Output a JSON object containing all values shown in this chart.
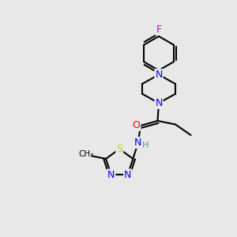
{
  "background_color": "#e8e8e8",
  "bond_color": "#000000",
  "atom_colors": {
    "N": "#0000ff",
    "O": "#ff0000",
    "S": "#cccc00",
    "F": "#cc00cc",
    "C": "#000000",
    "H": "#4a9a8a"
  },
  "figsize": [
    3.0,
    3.0
  ],
  "dpi": 100
}
